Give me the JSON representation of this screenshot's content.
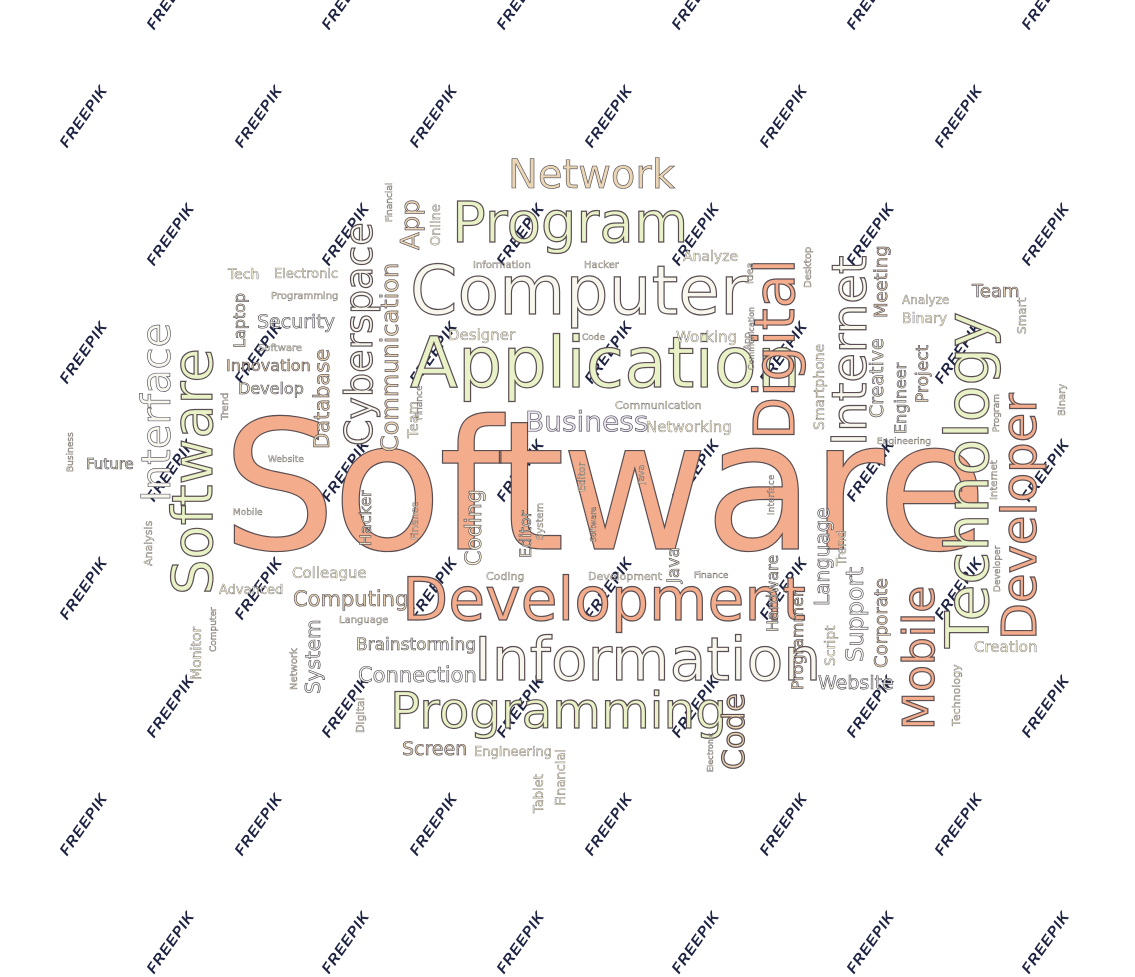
{
  "colors": {
    "peach": "#f4ad8c",
    "sand": "#ead6b4",
    "cream": "#f6f1d4",
    "lime": "#e8f2c6",
    "pale": "#f7f7ee",
    "lav": "#e7e2ec",
    "outline": "#4a4450",
    "watermark": "#1e2342"
  },
  "watermark": {
    "text": "FREEPIK"
  },
  "words": {
    "w01": "Software",
    "w02": "Computer",
    "w03": "Application",
    "w04": "Development",
    "w05": "Information",
    "w06": "Programming",
    "w07": "Program",
    "w08": "Network",
    "w09": "Business",
    "w10": "Networking",
    "w11": "Communication",
    "w12": "Designer",
    "w13": "Working",
    "w14": "Code",
    "w15": "Information",
    "w16": "Hacker",
    "w17": "Analyze",
    "w18": "Computing",
    "w19": "Colleague",
    "w20": "Advanced",
    "w21": "Language",
    "w22": "Brainstorming",
    "w23": "Connection",
    "w24": "Screen",
    "w25": "Engineering",
    "w26": "Coding",
    "w27": "Development",
    "w28": "Finance",
    "w29": "Tech",
    "w30": "Electronic",
    "w31": "Programming",
    "w32": "Security",
    "w33": "Software",
    "w34": "Innovation",
    "w35": "Develop",
    "w36": "Future",
    "w37": "Website",
    "w38": "Mobile",
    "w39": "Website",
    "w40": "Creation",
    "w41": "Team",
    "w42": "Analyze",
    "w43": "Binary",
    "w44": "Engineering",
    "w45": "Software",
    "w46": "Interface",
    "w47": "Cyberspace",
    "w48": "Communication",
    "w49": "Database",
    "w50": "App",
    "w51": "Team",
    "w52": "Laptop",
    "w53": "Trend",
    "w54": "Online",
    "w55": "Financial",
    "w56": "Digital",
    "w57": "Internet",
    "w58": "Technology",
    "w59": "Developer",
    "w60": "Mobile",
    "w61": "Support",
    "w62": "Corporate",
    "w63": "Creative",
    "w64": "Engineer",
    "w65": "Project",
    "w66": "Meeting",
    "w67": "Smartphone",
    "w68": "Programmer",
    "w69": "Hardware",
    "w70": "Language",
    "w71": "Script",
    "w72": "Trend",
    "w73": "Java",
    "w74": "Coding",
    "w75": "Editor",
    "w76": "System",
    "w77": "Hacker",
    "w78": "Finance",
    "w79": "Editor",
    "w80": "Java",
    "w81": "Interface",
    "w82": "System",
    "w83": "Network",
    "w84": "Monitor",
    "w85": "Computer",
    "w86": "Digital",
    "w87": "Tablet",
    "w88": "Financial",
    "w89": "Electronic",
    "w90": "Technology",
    "w91": "Smart",
    "w92": "Program",
    "w93": "Internet",
    "w94": "Developer",
    "w95": "Binary",
    "w96": "Desktop",
    "w97": "Idea",
    "w98": "Analysis",
    "w99": "Business",
    "w100": "Finance",
    "w101": "Code",
    "w102": "Communication",
    "w103": "App",
    "w104": "Software"
  }
}
